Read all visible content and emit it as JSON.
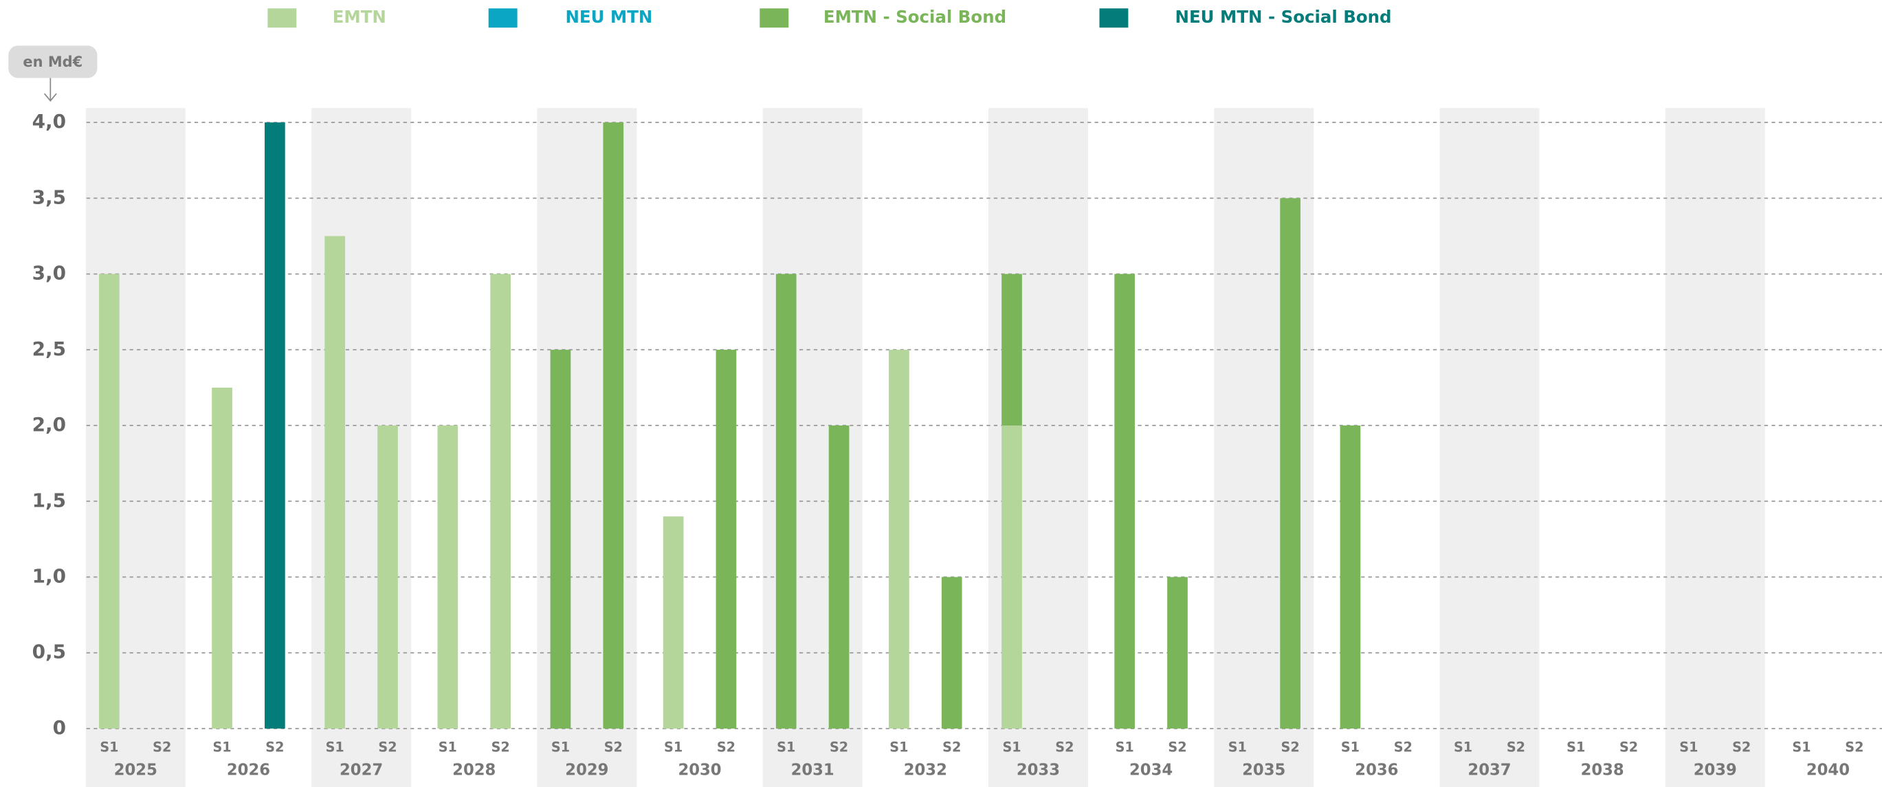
{
  "chart_data": {
    "type": "bar",
    "stacked": true,
    "unit_label": "en Md€",
    "categories": [
      "S1",
      "S2",
      "S1",
      "S2",
      "S1",
      "S2",
      "S1",
      "S2",
      "S1",
      "S2",
      "S1",
      "S2",
      "S1",
      "S2",
      "S1",
      "S2",
      "S1",
      "S2",
      "S1",
      "S2",
      "S1",
      "S2",
      "S1",
      "S2",
      "S1",
      "S2",
      "S1",
      "S2",
      "S1",
      "S2",
      "S1",
      "S2"
    ],
    "years": [
      "2025",
      "2026",
      "2027",
      "2028",
      "2029",
      "2030",
      "2031",
      "2032",
      "2033",
      "2034",
      "2035",
      "2036",
      "2037",
      "2038",
      "2039",
      "2040"
    ],
    "series": [
      {
        "name": "EMTN",
        "color": "#b5d69b",
        "values": [
          3.0,
          null,
          2.25,
          null,
          3.25,
          2.0,
          2.0,
          3.0,
          null,
          null,
          1.4,
          null,
          null,
          null,
          2.5,
          null,
          2.0,
          null,
          null,
          null,
          null,
          null,
          null,
          null,
          null,
          null,
          null,
          null,
          null,
          null,
          null,
          null
        ]
      },
      {
        "name": "NEU MTN",
        "color": "#0aa6c4",
        "values": [
          null,
          null,
          null,
          null,
          null,
          null,
          null,
          null,
          null,
          null,
          null,
          null,
          null,
          null,
          null,
          null,
          null,
          null,
          null,
          null,
          null,
          null,
          null,
          null,
          null,
          null,
          null,
          null,
          null,
          null,
          null,
          null
        ]
      },
      {
        "name": "EMTN - Social Bond",
        "color": "#7ab55a",
        "values": [
          null,
          null,
          null,
          null,
          null,
          null,
          null,
          null,
          2.5,
          4.0,
          null,
          2.5,
          3.0,
          2.0,
          null,
          1.0,
          1.0,
          null,
          3.0,
          1.0,
          null,
          3.5,
          2.0,
          null,
          null,
          null,
          null,
          null,
          null,
          null,
          null,
          null
        ]
      },
      {
        "name": "NEU MTN - Social Bond",
        "color": "#047c7a",
        "values": [
          null,
          null,
          null,
          4.0,
          null,
          null,
          null,
          null,
          null,
          null,
          null,
          null,
          null,
          null,
          null,
          null,
          null,
          null,
          null,
          null,
          null,
          null,
          null,
          null,
          null,
          null,
          null,
          null,
          null,
          null,
          null,
          null
        ]
      }
    ],
    "ylim": [
      0,
      4
    ],
    "yticks": [
      0,
      {
        "value": 0.5,
        "label": "0,5"
      },
      {
        "value": 1,
        "label": "1,0"
      },
      {
        "value": 1.5,
        "label": "1,5"
      },
      {
        "value": 2,
        "label": "2,0"
      },
      {
        "value": 2.5,
        "label": "2,5"
      },
      {
        "value": 3,
        "label": "3,0"
      },
      {
        "value": 3.5,
        "label": "3,5"
      },
      {
        "value": 4,
        "label": "4,0"
      }
    ],
    "grid": true,
    "legend": "top"
  }
}
